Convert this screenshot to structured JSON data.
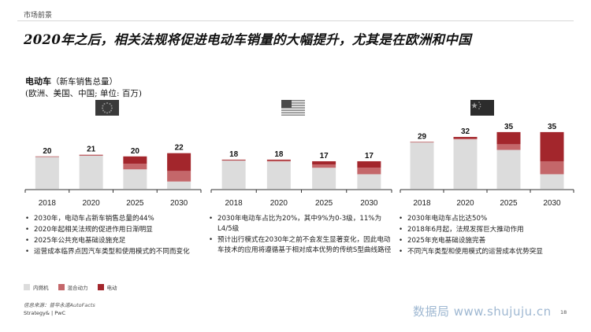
{
  "header": {
    "section": "市场前景",
    "title": "2020年之后，相关法规将促进电动车销量的大幅提升，尤其是在欧洲和中国"
  },
  "subtitle": {
    "main": "电动车",
    "rest": "（新车销售总量）",
    "units": "(欧洲、美国、中国; 单位: 百万)"
  },
  "colors": {
    "ice": "#dcdcdc",
    "hybrid": "#c4676a",
    "ev": "#a3262c",
    "axis": "#333333"
  },
  "chart_data": [
    {
      "type": "bar",
      "region_icon": "eu-flag",
      "categories": [
        "2018",
        "2020",
        "2025",
        "2030"
      ],
      "totals": [
        20,
        21,
        20,
        22
      ],
      "series": [
        {
          "name": "内燃机",
          "values": [
            19.6,
            20.4,
            12.0,
            4.5
          ]
        },
        {
          "name": "混合动力",
          "values": [
            0.2,
            0.3,
            3.5,
            6.5
          ]
        },
        {
          "name": "电动",
          "values": [
            0.2,
            0.3,
            4.5,
            11.0
          ]
        }
      ],
      "ylim": [
        0,
        36
      ]
    },
    {
      "type": "bar",
      "region_icon": "us-flag",
      "categories": [
        "2018",
        "2020",
        "2025",
        "2030"
      ],
      "totals": [
        18,
        18,
        17,
        17
      ],
      "series": [
        {
          "name": "内燃机",
          "values": [
            17.4,
            16.9,
            13.0,
            9.0
          ]
        },
        {
          "name": "混合动力",
          "values": [
            0.3,
            0.6,
            2.0,
            4.0
          ]
        },
        {
          "name": "电动",
          "values": [
            0.3,
            0.5,
            2.0,
            4.0
          ]
        }
      ],
      "ylim": [
        0,
        36
      ]
    },
    {
      "type": "bar",
      "region_icon": "china-flag",
      "categories": [
        "2018",
        "2020",
        "2025",
        "2030"
      ],
      "totals": [
        29,
        32,
        35,
        35
      ],
      "series": [
        {
          "name": "内燃机",
          "values": [
            28.6,
            30.5,
            24.0,
            9.0
          ]
        },
        {
          "name": "混合动力",
          "values": [
            0.2,
            0.5,
            3.5,
            8.0
          ]
        },
        {
          "name": "电动",
          "values": [
            0.2,
            1.0,
            7.5,
            18.0
          ]
        }
      ],
      "ylim": [
        0,
        36
      ]
    }
  ],
  "bullets": [
    [
      "2030年，电动车占新车销售总量的44%",
      "2020年起相关法规的促进作用日渐明显",
      "2025年公共充电基础设施充足",
      "运营成本临界点因汽车类型和使用模式的不同而变化"
    ],
    [
      "2030年电动车占比为20%，其中9%为0-3级，11%为L4/5级",
      "预计出行模式在2030年之前不会发生显著变化，因此电动车技术的应用将遵循基于相对成本优势的传统S型曲线路径"
    ],
    [
      "2030年电动车占比达50%",
      "2018年6月起，法规发挥巨大推动作用",
      "2025年充电基础设施完善",
      "不同汽车类型和使用模式的运营成本优势突显"
    ]
  ],
  "legend": [
    "内燃机",
    "混合动力",
    "电动"
  ],
  "source": "信息来源：普华永道AutoFacts",
  "footer": "Strategy& | PwC",
  "watermark": "数据局 www.shujuju.cn",
  "page_number": "18"
}
